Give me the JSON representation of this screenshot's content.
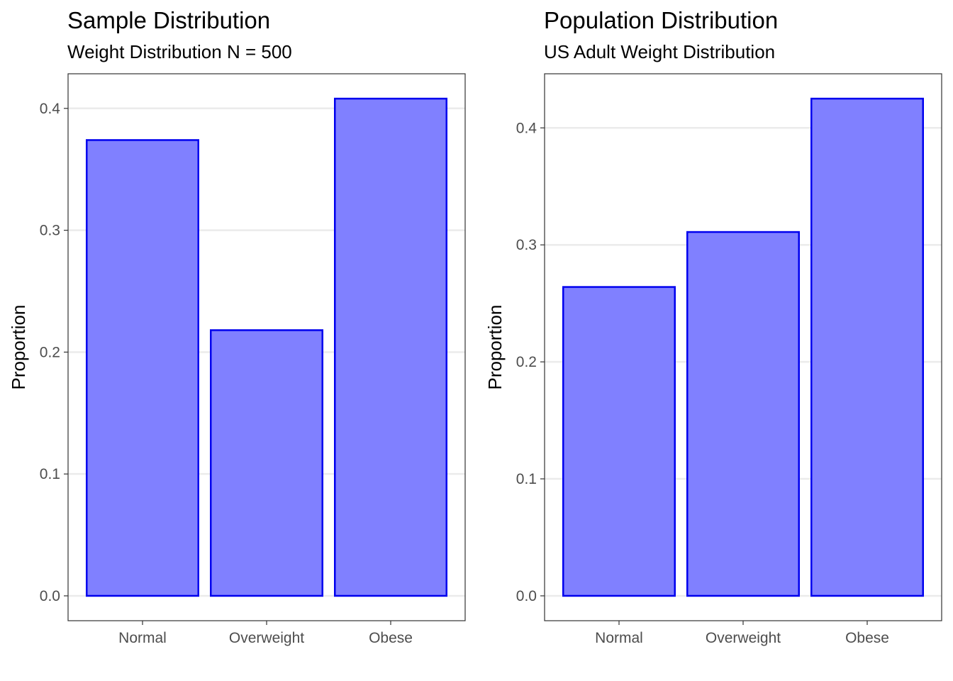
{
  "chart_data": [
    {
      "type": "bar",
      "title": "Sample Distribution",
      "subtitle": "Weight Distribution N = 500",
      "xlabel": "",
      "ylabel": "Proportion",
      "categories": [
        "Normal",
        "Overweight",
        "Obese"
      ],
      "values": [
        0.374,
        0.218,
        0.408
      ],
      "ylim": [
        -0.0204,
        0.4284
      ],
      "yticks": [
        0.0,
        0.1,
        0.2,
        0.3,
        0.4
      ],
      "ytick_labels": [
        "0.0",
        "0.1",
        "0.2",
        "0.3",
        "0.4"
      ],
      "grid": true,
      "bar_fill": "#8080ff",
      "bar_stroke": "#0000ee"
    },
    {
      "type": "bar",
      "title": "Population Distribution",
      "subtitle": "US Adult Weight Distribution",
      "xlabel": "",
      "ylabel": "Proportion",
      "categories": [
        "Normal",
        "Overweight",
        "Obese"
      ],
      "values": [
        0.264,
        0.311,
        0.425
      ],
      "ylim": [
        -0.02125,
        0.44625
      ],
      "yticks": [
        0.0,
        0.1,
        0.2,
        0.3,
        0.4
      ],
      "ytick_labels": [
        "0.0",
        "0.1",
        "0.2",
        "0.3",
        "0.4"
      ],
      "grid": true,
      "bar_fill": "#8080ff",
      "bar_stroke": "#0000ee"
    }
  ]
}
